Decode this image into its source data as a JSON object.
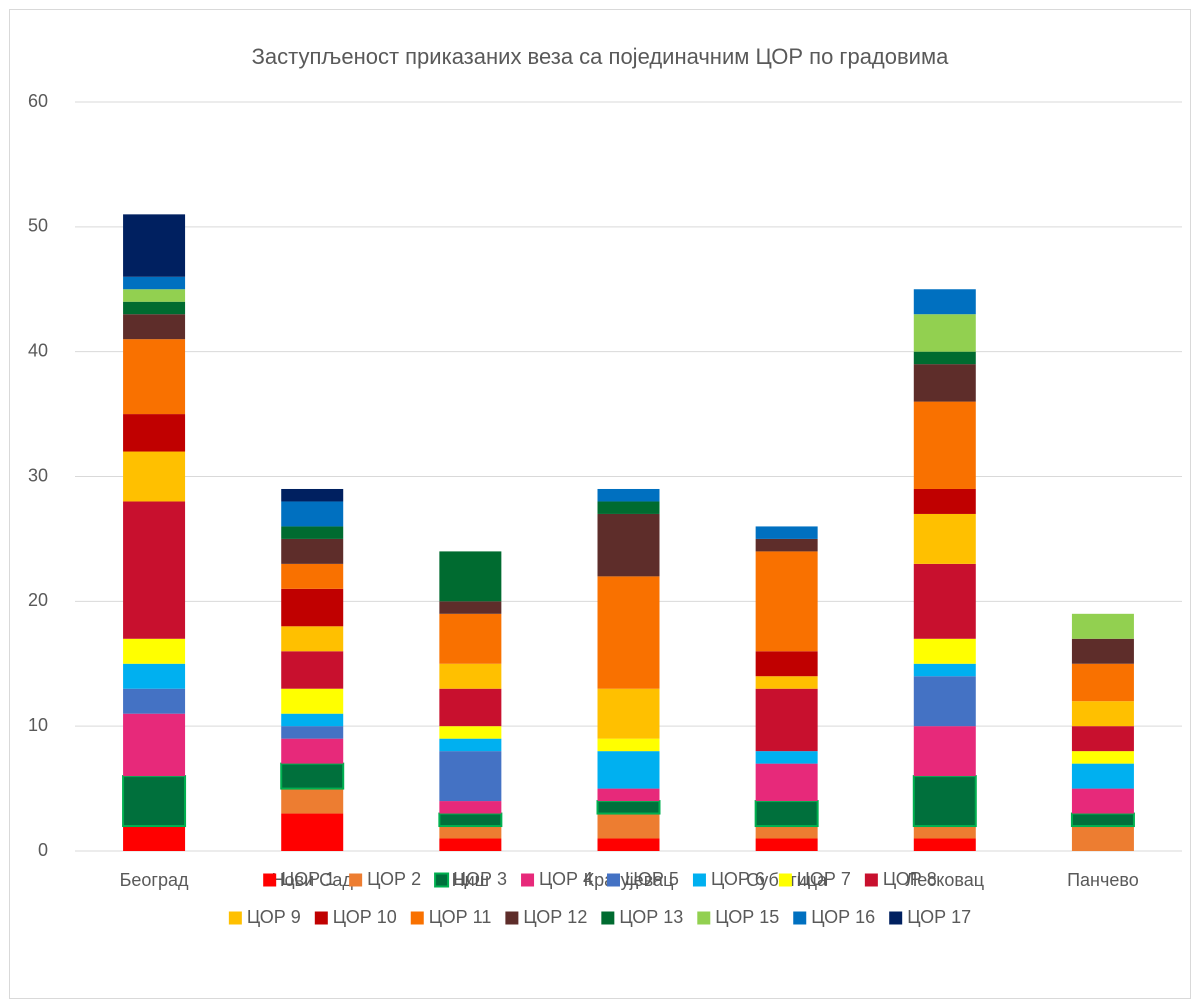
{
  "chart_data": {
    "type": "stacked_bar",
    "title": "Заступљеност приказаних веза са појединачним ЦОР по градовима",
    "categories": [
      "Београд",
      "Нови Сад",
      "Ниш",
      "Крагујевац",
      "Суботица",
      "Лесковац",
      "Панчево"
    ],
    "ylim": [
      0,
      60
    ],
    "yticks": [
      0,
      10,
      20,
      30,
      40,
      50,
      60
    ],
    "grid": true,
    "series": [
      {
        "name": "ЦОР 1",
        "color": "#ff0000",
        "values": [
          2,
          3,
          1,
          1,
          1,
          1,
          0
        ]
      },
      {
        "name": "ЦОР 2",
        "color": "#ed7d31",
        "values": [
          0,
          2,
          1,
          2,
          1,
          1,
          2
        ]
      },
      {
        "name": "ЦОР 3",
        "color": "#00703c",
        "values": [
          4,
          2,
          1,
          1,
          2,
          4,
          1
        ]
      },
      {
        "name": "ЦОР 4",
        "color": "#e7297a",
        "values": [
          5,
          2,
          1,
          1,
          3,
          4,
          2
        ]
      },
      {
        "name": "ЦОР 5",
        "color": "#4472c4",
        "values": [
          2,
          1,
          4,
          0,
          0,
          4,
          0
        ]
      },
      {
        "name": "ЦОР 6",
        "color": "#00b0f0",
        "values": [
          2,
          1,
          1,
          3,
          1,
          1,
          2
        ]
      },
      {
        "name": "ЦОР 7",
        "color": "#ffff00",
        "values": [
          2,
          2,
          1,
          1,
          0,
          2,
          1
        ]
      },
      {
        "name": "ЦОР 8",
        "color": "#c8102e",
        "values": [
          11,
          3,
          3,
          0,
          5,
          6,
          2
        ]
      },
      {
        "name": "ЦОР 9",
        "color": "#ffc000",
        "values": [
          4,
          2,
          2,
          4,
          1,
          4,
          2
        ]
      },
      {
        "name": "ЦОР 10",
        "color": "#c00000",
        "values": [
          3,
          3,
          0,
          0,
          2,
          2,
          0
        ]
      },
      {
        "name": "ЦОР 11",
        "color": "#f97100",
        "values": [
          6,
          2,
          4,
          9,
          8,
          7,
          3
        ]
      },
      {
        "name": "ЦОР 12",
        "color": "#5e2d2a",
        "values": [
          2,
          2,
          1,
          5,
          1,
          3,
          2
        ]
      },
      {
        "name": "ЦОР 13",
        "color": "#006b30",
        "values": [
          1,
          1,
          4,
          1,
          0,
          1,
          0
        ]
      },
      {
        "name": "ЦОР 15",
        "color": "#92d050",
        "values": [
          1,
          0,
          0,
          0,
          0,
          3,
          2
        ]
      },
      {
        "name": "ЦОР 16",
        "color": "#0070c0",
        "values": [
          1,
          2,
          0,
          1,
          1,
          2,
          0
        ]
      },
      {
        "name": "ЦОР 17",
        "color": "#002060",
        "values": [
          5,
          1,
          0,
          0,
          0,
          0,
          0
        ]
      }
    ]
  }
}
